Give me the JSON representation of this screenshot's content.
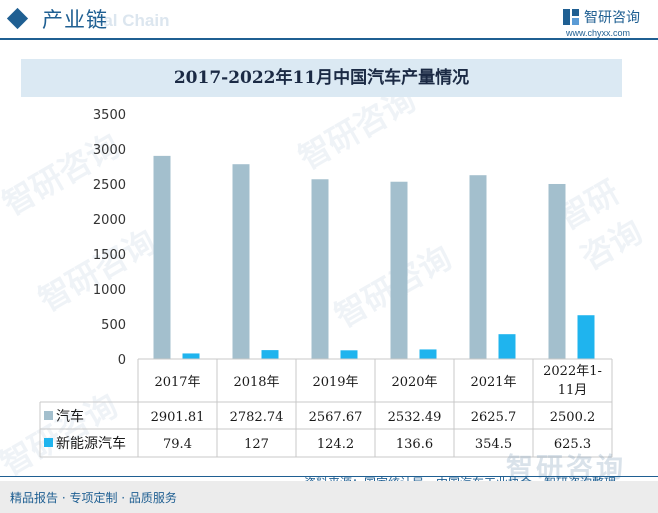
{
  "header": {
    "title": "产业链",
    "watermark_text": "rial Chain",
    "logo_name": "智研咨询",
    "logo_url": "www.chyxx.com"
  },
  "watermark_text": "智研咨询",
  "footer": {
    "source": "资料来源：国家统计局、中国汽车工业协会、智研咨询整理",
    "tagline": "精品报告 · 专项定制 · 品质服务"
  },
  "colors": {
    "series_car": "#a3bfcd",
    "series_nev": "#1fb4ee",
    "brand": "#1f5f92",
    "title_band": "#dbe9f3"
  },
  "chart_data": {
    "type": "bar",
    "title": "2017-2022年11月中国汽车产量情况",
    "categories": [
      "2017年",
      "2018年",
      "2019年",
      "2020年",
      "2021年",
      "2022年1-11月"
    ],
    "category_lines": [
      [
        "2017年"
      ],
      [
        "2018年"
      ],
      [
        "2019年"
      ],
      [
        "2020年"
      ],
      [
        "2021年"
      ],
      [
        "2022年1-",
        "11月"
      ]
    ],
    "series": [
      {
        "name": "汽车",
        "values": [
          2901.81,
          2782.74,
          2567.67,
          2532.49,
          2625.7,
          2500.2
        ],
        "labels": [
          "2901.81",
          "2782.74",
          "2567.67",
          "2532.49",
          "2625.7",
          "2500.2"
        ]
      },
      {
        "name": "新能源汽车",
        "values": [
          79.4,
          127,
          124.2,
          136.6,
          354.5,
          625.3
        ],
        "labels": [
          "79.4",
          "127",
          "124.2",
          "136.6",
          "354.5",
          "625.3"
        ]
      }
    ],
    "ylim": [
      0,
      3500
    ],
    "yticks": [
      0,
      500,
      1000,
      1500,
      2000,
      2500,
      3000,
      3500
    ],
    "grid": false,
    "legend": "data-table"
  }
}
